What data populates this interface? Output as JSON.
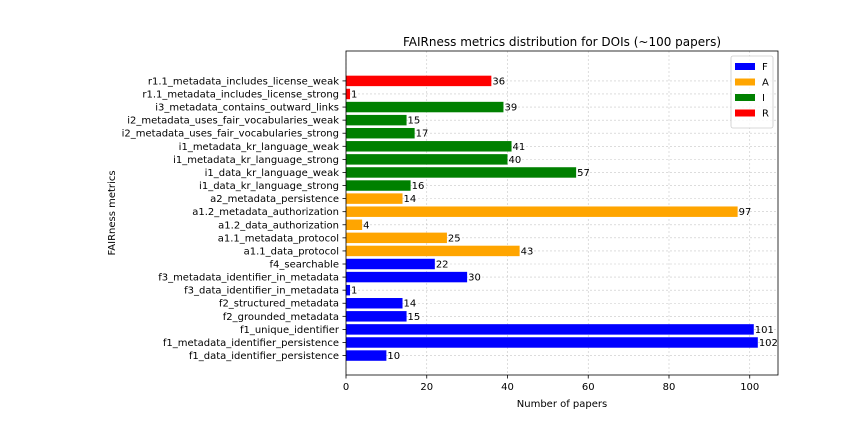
{
  "chart_data": {
    "type": "bar",
    "orientation": "horizontal",
    "title": "FAIRness metrics distribution for DOIs (~100 papers)",
    "xlabel": "Number of papers",
    "ylabel": "FAIRness metrics",
    "xlim": [
      0,
      107
    ],
    "xticks": [
      "0",
      "20",
      "40",
      "60",
      "80",
      "100"
    ],
    "grid": true,
    "legend_position": "top-right",
    "legend": [
      {
        "name": "F",
        "color": "#0000ff"
      },
      {
        "name": "A",
        "color": "#ffa500"
      },
      {
        "name": "I",
        "color": "#008000"
      },
      {
        "name": "R",
        "color": "#ff0000"
      }
    ],
    "bars": [
      {
        "label": "f1_data_identifier_persistence",
        "value": 10,
        "group": "F",
        "value_label": "10"
      },
      {
        "label": "f1_metadata_identifier_persistence",
        "value": 102,
        "group": "F",
        "value_label": "102"
      },
      {
        "label": "f1_unique_identifier",
        "value": 101,
        "group": "F",
        "value_label": "101"
      },
      {
        "label": "f2_grounded_metadata",
        "value": 15,
        "group": "F",
        "value_label": "15"
      },
      {
        "label": "f2_structured_metadata",
        "value": 14,
        "group": "F",
        "value_label": "14"
      },
      {
        "label": "f3_data_identifier_in_metadata",
        "value": 1,
        "group": "F",
        "value_label": "1"
      },
      {
        "label": "f3_metadata_identifier_in_metadata",
        "value": 30,
        "group": "F",
        "value_label": "30"
      },
      {
        "label": "f4_searchable",
        "value": 22,
        "group": "F",
        "value_label": "22"
      },
      {
        "label": "a1.1_data_protocol",
        "value": 43,
        "group": "A",
        "value_label": "43"
      },
      {
        "label": "a1.1_metadata_protocol",
        "value": 25,
        "group": "A",
        "value_label": "25"
      },
      {
        "label": "a1.2_data_authorization",
        "value": 4,
        "group": "A",
        "value_label": "4"
      },
      {
        "label": "a1.2_metadata_authorization",
        "value": 97,
        "group": "A",
        "value_label": "97"
      },
      {
        "label": "a2_metadata_persistence",
        "value": 14,
        "group": "A",
        "value_label": "14"
      },
      {
        "label": "i1_data_kr_language_strong",
        "value": 16,
        "group": "I",
        "value_label": "16"
      },
      {
        "label": "i1_data_kr_language_weak",
        "value": 57,
        "group": "I",
        "value_label": "57"
      },
      {
        "label": "i1_metadata_kr_language_strong",
        "value": 40,
        "group": "I",
        "value_label": "40"
      },
      {
        "label": "i1_metadata_kr_language_weak",
        "value": 41,
        "group": "I",
        "value_label": "41"
      },
      {
        "label": "i2_metadata_uses_fair_vocabularies_strong",
        "value": 17,
        "group": "I",
        "value_label": "17"
      },
      {
        "label": "i2_metadata_uses_fair_vocabularies_weak",
        "value": 15,
        "group": "I",
        "value_label": "15"
      },
      {
        "label": "i3_metadata_contains_outward_links",
        "value": 39,
        "group": "I",
        "value_label": "39"
      },
      {
        "label": "r1.1_metadata_includes_license_strong",
        "value": 1,
        "group": "R",
        "value_label": "1"
      },
      {
        "label": "r1.1_metadata_includes_license_weak",
        "value": 36,
        "group": "R",
        "value_label": "36"
      }
    ]
  }
}
